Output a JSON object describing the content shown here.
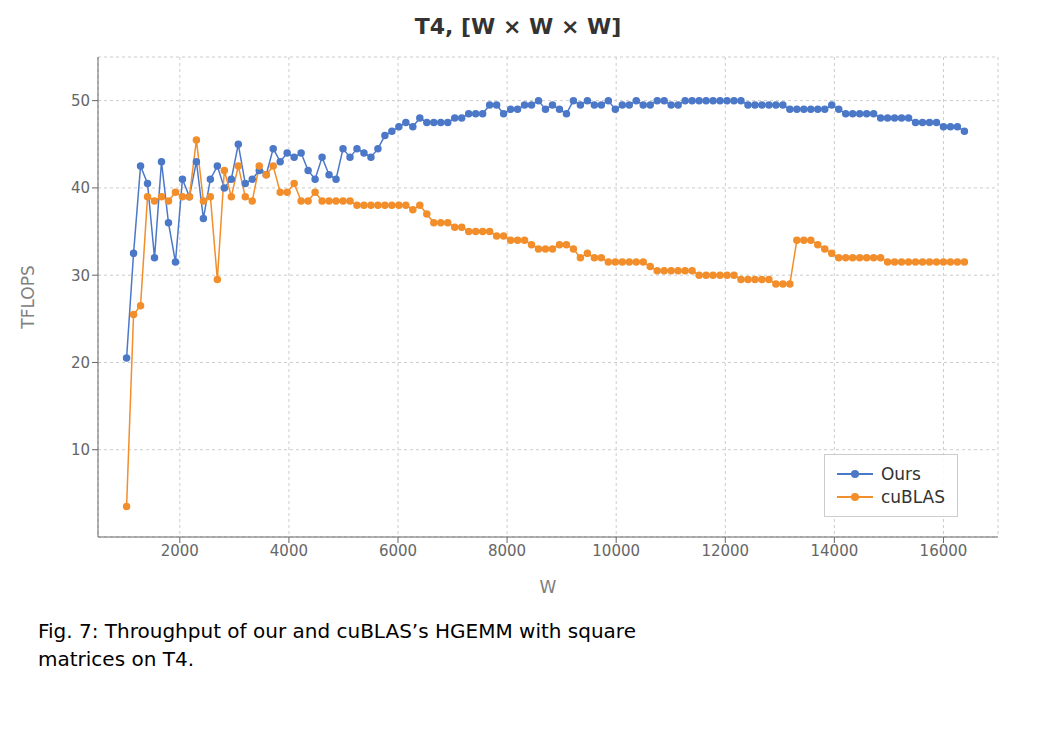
{
  "chart_data": {
    "type": "line",
    "title": "T4, [W × W × W]",
    "x_label": "W",
    "y_label": "TFLOPS",
    "annotations": [
      "Fig. 7: Throughput of our and cuBLAS’s HGEMM with square",
      "matrices on T4."
    ],
    "xlim": [
      500,
      17000
    ],
    "ylim": [
      0,
      55
    ],
    "xticks": [
      2000,
      4000,
      6000,
      8000,
      10000,
      12000,
      14000,
      16000
    ],
    "yticks": [
      10,
      20,
      30,
      40,
      50
    ],
    "grid": true,
    "legend": "lower right",
    "x": [
      1024,
      1152,
      1280,
      1408,
      1536,
      1664,
      1792,
      1920,
      2048,
      2176,
      2304,
      2432,
      2560,
      2688,
      2816,
      2944,
      3072,
      3200,
      3328,
      3456,
      3584,
      3712,
      3840,
      3968,
      4096,
      4224,
      4352,
      4480,
      4608,
      4736,
      4864,
      4992,
      5120,
      5248,
      5376,
      5504,
      5632,
      5760,
      5888,
      6016,
      6144,
      6272,
      6400,
      6528,
      6656,
      6784,
      6912,
      7040,
      7168,
      7296,
      7424,
      7552,
      7680,
      7808,
      7936,
      8064,
      8192,
      8320,
      8448,
      8576,
      8704,
      8832,
      8960,
      9088,
      9216,
      9344,
      9472,
      9600,
      9728,
      9856,
      9984,
      10112,
      10240,
      10368,
      10496,
      10624,
      10752,
      10880,
      11008,
      11136,
      11264,
      11392,
      11520,
      11648,
      11776,
      11904,
      12032,
      12160,
      12288,
      12416,
      12544,
      12672,
      12800,
      12928,
      13056,
      13184,
      13312,
      13440,
      13568,
      13696,
      13824,
      13952,
      14080,
      14208,
      14336,
      14464,
      14592,
      14720,
      14848,
      14976,
      15104,
      15232,
      15360,
      15488,
      15616,
      15744,
      15872,
      16000,
      16128,
      16256,
      16384
    ],
    "series": [
      {
        "name": "Ours",
        "color": "#4c78c8",
        "marker": "circle",
        "values": [
          20.5,
          32.5,
          42.5,
          40.5,
          32.0,
          43.0,
          36.0,
          31.5,
          41.0,
          39.0,
          43.0,
          36.5,
          41.0,
          42.5,
          40.0,
          41.0,
          45.0,
          40.5,
          41.0,
          42.0,
          41.5,
          44.5,
          43.0,
          44.0,
          43.5,
          44.0,
          42.0,
          41.0,
          43.5,
          41.5,
          41.0,
          44.5,
          43.5,
          44.5,
          44.0,
          43.5,
          44.5,
          46.0,
          46.5,
          47.0,
          47.5,
          47.0,
          48.0,
          47.5,
          47.5,
          47.5,
          47.5,
          48.0,
          48.0,
          48.5,
          48.5,
          48.5,
          49.5,
          49.5,
          48.5,
          49.0,
          49.0,
          49.5,
          49.5,
          50.0,
          49.0,
          49.5,
          49.0,
          48.5,
          50.0,
          49.5,
          50.0,
          49.5,
          49.5,
          50.0,
          49.0,
          49.5,
          49.5,
          50.0,
          49.5,
          49.5,
          50.0,
          50.0,
          49.5,
          49.5,
          50.0,
          50.0,
          50.0,
          50.0,
          50.0,
          50.0,
          50.0,
          50.0,
          50.0,
          49.5,
          49.5,
          49.5,
          49.5,
          49.5,
          49.5,
          49.0,
          49.0,
          49.0,
          49.0,
          49.0,
          49.0,
          49.5,
          49.0,
          48.5,
          48.5,
          48.5,
          48.5,
          48.5,
          48.0,
          48.0,
          48.0,
          48.0,
          48.0,
          47.5,
          47.5,
          47.5,
          47.5,
          47.0,
          47.0,
          47.0,
          46.5
        ]
      },
      {
        "name": "cuBLAS",
        "color": "#f28e2b",
        "marker": "circle",
        "values": [
          3.5,
          25.5,
          26.5,
          39.0,
          38.5,
          39.0,
          38.5,
          39.5,
          39.0,
          39.0,
          45.5,
          38.5,
          39.0,
          29.5,
          42.0,
          39.0,
          42.5,
          39.0,
          38.5,
          42.5,
          41.5,
          42.5,
          39.5,
          39.5,
          40.5,
          38.5,
          38.5,
          39.5,
          38.5,
          38.5,
          38.5,
          38.5,
          38.5,
          38.0,
          38.0,
          38.0,
          38.0,
          38.0,
          38.0,
          38.0,
          38.0,
          37.5,
          38.0,
          37.0,
          36.0,
          36.0,
          36.0,
          35.5,
          35.5,
          35.0,
          35.0,
          35.0,
          35.0,
          34.5,
          34.5,
          34.0,
          34.0,
          34.0,
          33.5,
          33.0,
          33.0,
          33.0,
          33.5,
          33.5,
          33.0,
          32.0,
          32.5,
          32.0,
          32.0,
          31.5,
          31.5,
          31.5,
          31.5,
          31.5,
          31.5,
          31.0,
          30.5,
          30.5,
          30.5,
          30.5,
          30.5,
          30.5,
          30.0,
          30.0,
          30.0,
          30.0,
          30.0,
          30.0,
          29.5,
          29.5,
          29.5,
          29.5,
          29.5,
          29.0,
          29.0,
          29.0,
          34.0,
          34.0,
          34.0,
          33.5,
          33.0,
          32.5,
          32.0,
          32.0,
          32.0,
          32.0,
          32.0,
          32.0,
          32.0,
          31.5,
          31.5,
          31.5,
          31.5,
          31.5,
          31.5,
          31.5,
          31.5,
          31.5,
          31.5,
          31.5,
          31.5
        ]
      }
    ]
  }
}
